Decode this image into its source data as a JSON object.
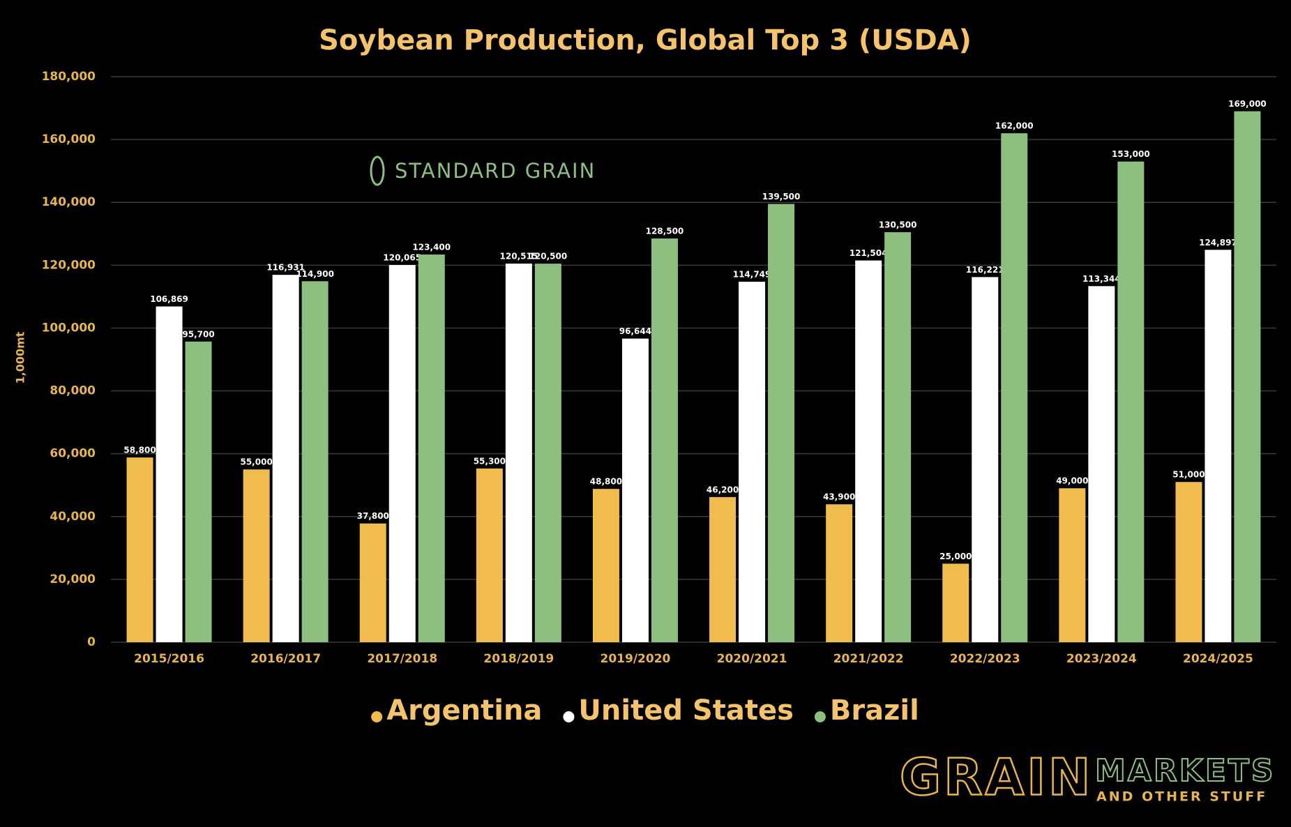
{
  "chart_data": {
    "type": "bar",
    "title": "Soybean Production, Global Top 3 (USDA)",
    "y_label": "1,000mt",
    "categories": [
      "2015/2016",
      "2016/2017",
      "2017/2018",
      "2018/2019",
      "2019/2020",
      "2020/2021",
      "2021/2022",
      "2022/2023",
      "2023/2024",
      "2024/2025"
    ],
    "series": [
      {
        "name": "Argentina",
        "color": "#f0bc4e",
        "values": [
          58800,
          55000,
          37800,
          55300,
          48800,
          46200,
          43900,
          25000,
          49000,
          51000
        ],
        "value_labels": [
          "58,800",
          "55,000",
          "37,800",
          "55,300",
          "48,800",
          "46,200",
          "43,900",
          "25,000",
          "49,000",
          "51,000"
        ]
      },
      {
        "name": "United States",
        "color": "#ffffff",
        "values": [
          106869,
          116931,
          120065,
          120515,
          96644,
          114749,
          121504,
          116221,
          113344,
          124897
        ],
        "value_labels": [
          "106,869",
          "116,931",
          "120,065",
          "120,515",
          "96,644",
          "114,749",
          "121,504",
          "116,221",
          "113,344",
          "124,897"
        ]
      },
      {
        "name": "Brazil",
        "color": "#8dbf80",
        "values": [
          95700,
          114900,
          123400,
          120500,
          128500,
          139500,
          130500,
          162000,
          153000,
          169000
        ],
        "value_labels": [
          "95,700",
          "114,900",
          "123,400",
          "120,500",
          "128,500",
          "139,500",
          "130,500",
          "162,000",
          "153,000",
          "169,000"
        ]
      }
    ],
    "ylim": [
      0,
      180000
    ],
    "yticks": [
      0,
      {
        "value": 20000,
        "label": "20,000"
      },
      {
        "value": 40000,
        "label": "40,000"
      },
      {
        "value": 60000,
        "label": "60,000"
      },
      {
        "value": 80000,
        "label": "80,000"
      },
      {
        "value": 100000,
        "label": "100,000"
      },
      {
        "value": 120000,
        "label": "120,000"
      },
      {
        "value": 140000,
        "label": "140,000"
      },
      {
        "value": 160000,
        "label": "160,000"
      },
      {
        "value": 180000,
        "label": "180,000"
      }
    ],
    "grid": true,
    "legend": "bottom"
  },
  "watermark": "STANDARD GRAIN",
  "logo": {
    "name": "GRAIN",
    "second": "MARKETS",
    "tagline": "AND OTHER STUFF"
  }
}
